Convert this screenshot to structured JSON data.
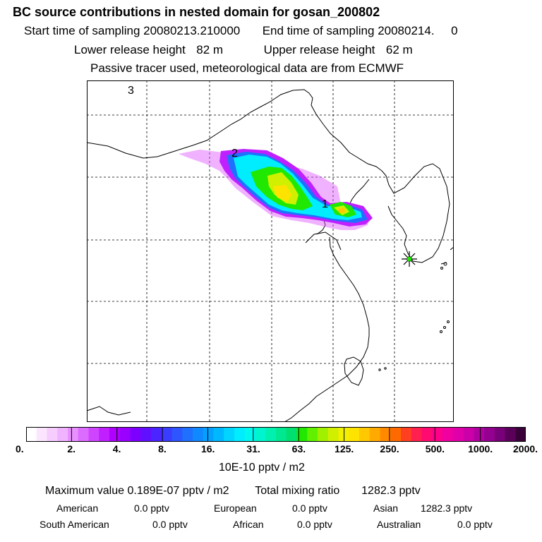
{
  "header": {
    "title": "BC  source contributions in nested domain for gosan_200802",
    "start_label": "Start time of sampling",
    "start_value": "20080213.210000",
    "end_label": "End time of sampling",
    "end_value": "20080214.     0",
    "lower_label": "Lower release height",
    "lower_value": "82 m",
    "upper_label": "Upper release height",
    "upper_value": "62 m",
    "tracer_note": "Passive tracer used, meteorological data are from ECMWF"
  },
  "map": {
    "labels": [
      "3",
      "2",
      "1"
    ],
    "receptor_marker": "star-cross receptor marker (Gosan)",
    "colors": {
      "grid": "#000000",
      "coast": "#000000",
      "plume_outer": "#cc00ff",
      "plume_mid": "#00e5ee",
      "plume_inner": "#a0f000",
      "plume_core": "#ffe300",
      "peak": "#ffb000"
    }
  },
  "colorbar": {
    "ticks": [
      "0.",
      "2.",
      "4.",
      "8.",
      "16.",
      "31.",
      "63.",
      "125.",
      "250.",
      "500.",
      "1000.",
      "2000."
    ],
    "colors": [
      "#ffffff",
      "#fce6ff",
      "#f7ccff",
      "#f0b3ff",
      "#e890ff",
      "#dc6bff",
      "#cf45ff",
      "#c020ff",
      "#b000ff",
      "#9a00ff",
      "#7d00ff",
      "#6010ff",
      "#4b24ff",
      "#3a3cff",
      "#2e55ff",
      "#1f70ff",
      "#1088ff",
      "#04a0ff",
      "#00b8ff",
      "#00d4ff",
      "#00ecff",
      "#00f8ee",
      "#00f5cf",
      "#00f0b0",
      "#00e890",
      "#00e070",
      "#20e800",
      "#60f000",
      "#a0f000",
      "#d0f000",
      "#f0f000",
      "#ffe300",
      "#ffc800",
      "#ffaa00",
      "#ff8a00",
      "#ff6a00",
      "#ff4020",
      "#ff2050",
      "#ff0a70",
      "#ff008a",
      "#f000a0",
      "#e000aa",
      "#cc00a8",
      "#b000a0",
      "#940090",
      "#780078",
      "#5a005a",
      "#3a003a"
    ],
    "units": "10E-10 pptv / m2"
  },
  "summary": {
    "max_label": "Maximum value",
    "max_value": "0.189E-07 pptv / m2",
    "total_label": "Total mixing ratio",
    "total_value": "1282.3 pptv",
    "regions": [
      {
        "name": "American",
        "value": "0.0 pptv"
      },
      {
        "name": "European",
        "value": "0.0 pptv"
      },
      {
        "name": "Asian",
        "value": "1282.3 pptv"
      },
      {
        "name": "South American",
        "value": "0.0 pptv"
      },
      {
        "name": "African",
        "value": "0.0 pptv"
      },
      {
        "name": "Australian",
        "value": "0.0 pptv"
      }
    ]
  }
}
